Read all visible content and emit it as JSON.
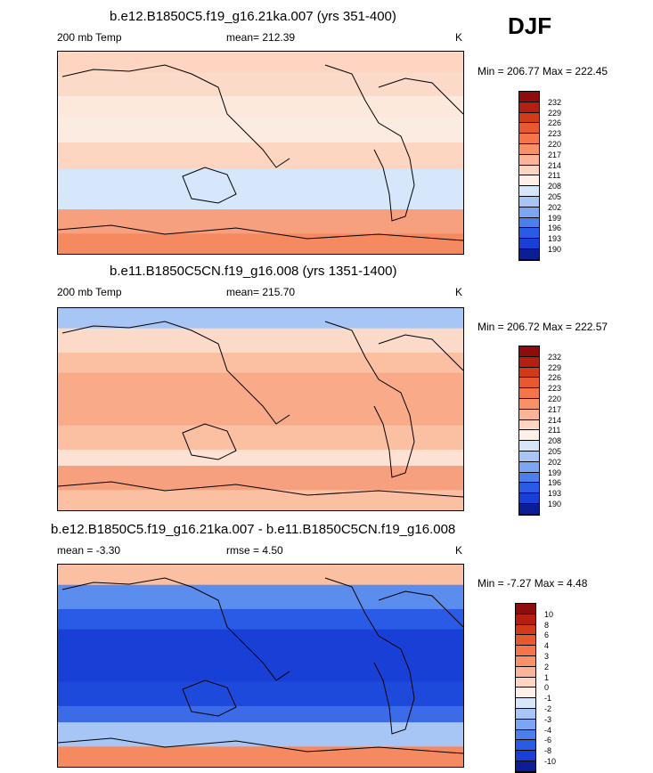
{
  "season": "DJF",
  "panels": [
    {
      "title": "b.e12.B1850C5.f19_g16.21ka.007 (yrs 351-400)",
      "left_label": "200 mb Temp",
      "center_label": "mean= 212.39",
      "units": "K",
      "minmax": "Min = 206.77 Max = 222.45",
      "bands": [
        "#fdd5c1",
        "#fcdac9",
        "#fde8dc",
        "#fcebe1",
        "#fdd5c1",
        "#d6e7fb",
        "#d6e7fb",
        "#f7a07d",
        "#f58a60"
      ]
    },
    {
      "title": "b.e11.B1850C5CN.f19_g16.008 (yrs 1351-1400)",
      "left_label": "200 mb Temp",
      "center_label": "mean= 215.70",
      "units": "K",
      "minmax": "Min = 206.72 Max = 222.57",
      "bands": [
        "#a8c6f5",
        "#fcdac9",
        "#fbbfa2",
        "#f9aa88",
        "#f9aa88",
        "#fbbfa2",
        "#fde2d4",
        "#f7a07d",
        "#fbbfa2"
      ]
    },
    {
      "title": "b.e12.B1850C5.f19_g16.21ka.007 - b.e11.B1850C5CN.f19_g16.008",
      "left_label": "mean =  -3.30",
      "center_label": "rmse =   4.50",
      "units": "K",
      "minmax": "Min =  -7.27 Max =   4.48",
      "bands": [
        "#fbbfa2",
        "#5b8def",
        "#2a5be6",
        "#1840d6",
        "#1840d6",
        "#1e4adb",
        "#3c6be8",
        "#a8c6f5",
        "#f58a60"
      ]
    }
  ],
  "colorbars": [
    {
      "labels": [
        "232",
        "229",
        "226",
        "223",
        "220",
        "217",
        "214",
        "211",
        "208",
        "205",
        "202",
        "199",
        "196",
        "193",
        "190"
      ],
      "colors": [
        "#8e0c0c",
        "#b41f10",
        "#d33a18",
        "#e9592f",
        "#f4754a",
        "#f89168",
        "#fbb497",
        "#fdd5c1",
        "#fef0e6",
        "#d6e7fb",
        "#a8c6f5",
        "#7aa6f2",
        "#4b80ec",
        "#2a5be6",
        "#1a3fd7",
        "#0a1f96"
      ]
    },
    {
      "labels": [
        "232",
        "229",
        "226",
        "223",
        "220",
        "217",
        "214",
        "211",
        "208",
        "205",
        "202",
        "199",
        "196",
        "193",
        "190"
      ],
      "colors": [
        "#8e0c0c",
        "#b41f10",
        "#d33a18",
        "#e9592f",
        "#f4754a",
        "#f89168",
        "#fbb497",
        "#fdd5c1",
        "#fef0e6",
        "#d6e7fb",
        "#a8c6f5",
        "#7aa6f2",
        "#4b80ec",
        "#2a5be6",
        "#1a3fd7",
        "#0a1f96"
      ]
    },
    {
      "labels": [
        "10",
        "8",
        "6",
        "4",
        "3",
        "2",
        "1",
        "0",
        "-1",
        "-2",
        "-3",
        "-4",
        "-6",
        "-8",
        "-10"
      ],
      "colors": [
        "#8e0c0c",
        "#b41f10",
        "#d33a18",
        "#e9592f",
        "#f4754a",
        "#f89168",
        "#fbb497",
        "#fdd5c1",
        "#fef0e6",
        "#d6e7fb",
        "#a8c6f5",
        "#7aa6f2",
        "#4b80ec",
        "#2a5be6",
        "#1a3fd7",
        "#0a1f96"
      ]
    }
  ],
  "chart_data": [
    {
      "type": "heatmap",
      "title": "b.e12.B1850C5.f19_g16.21ka.007 (yrs 351-400)",
      "variable": "200 mb Temp",
      "units": "K",
      "mean": 212.39,
      "min": 206.77,
      "max": 222.45,
      "contour_levels": [
        190,
        193,
        196,
        199,
        202,
        205,
        208,
        211,
        214,
        217,
        220,
        223,
        226,
        229,
        232
      ]
    },
    {
      "type": "heatmap",
      "title": "b.e11.B1850C5CN.f19_g16.008 (yrs 1351-1400)",
      "variable": "200 mb Temp",
      "units": "K",
      "mean": 215.7,
      "min": 206.72,
      "max": 222.57,
      "contour_levels": [
        190,
        193,
        196,
        199,
        202,
        205,
        208,
        211,
        214,
        217,
        220,
        223,
        226,
        229,
        232
      ]
    },
    {
      "type": "heatmap",
      "title": "b.e12.B1850C5.f19_g16.21ka.007 - b.e11.B1850C5CN.f19_g16.008",
      "units": "K",
      "mean": -3.3,
      "rmse": 4.5,
      "min": -7.27,
      "max": 4.48,
      "contour_levels": [
        -10,
        -8,
        -6,
        -4,
        -3,
        -2,
        -1,
        0,
        1,
        2,
        3,
        4,
        6,
        8,
        10
      ]
    }
  ]
}
